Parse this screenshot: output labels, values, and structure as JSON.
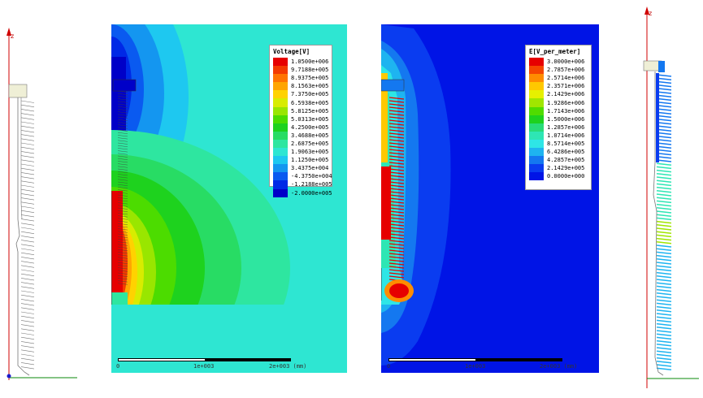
{
  "voltage_legend": {
    "title": "Voltage[V]",
    "entries": [
      {
        "label": "1.0500e+006",
        "color": "#e60000"
      },
      {
        "label": "9.7188e+005",
        "color": "#f33a00"
      },
      {
        "label": "8.9375e+005",
        "color": "#ff7300"
      },
      {
        "label": "8.1563e+005",
        "color": "#ffa500"
      },
      {
        "label": "7.3750e+005",
        "color": "#ffd200"
      },
      {
        "label": "6.5938e+005",
        "color": "#d8ec00"
      },
      {
        "label": "5.8125e+005",
        "color": "#99e600"
      },
      {
        "label": "5.0313e+005",
        "color": "#4cdc00"
      },
      {
        "label": "4.2500e+005",
        "color": "#1ed21e"
      },
      {
        "label": "3.4688e+005",
        "color": "#28dc64"
      },
      {
        "label": "2.6875e+005",
        "color": "#2ee6a0"
      },
      {
        "label": "1.9063e+005",
        "color": "#2ee6d2"
      },
      {
        "label": "1.1250e+005",
        "color": "#1ec8f0"
      },
      {
        "label": "3.4375e+004",
        "color": "#1496f0"
      },
      {
        "label": "-4.3750e+004",
        "color": "#0a5af0"
      },
      {
        "label": "-1.2188e+005",
        "color": "#0028e6"
      },
      {
        "label": "-2.0000e+005",
        "color": "#0000c8"
      }
    ]
  },
  "field_legend": {
    "title": "E[V_per_meter]",
    "entries": [
      {
        "label": "3.0000e+006",
        "color": "#e60000"
      },
      {
        "label": "2.7857e+006",
        "color": "#f54600"
      },
      {
        "label": "2.5714e+006",
        "color": "#ff8c00"
      },
      {
        "label": "2.3571e+006",
        "color": "#ffc800"
      },
      {
        "label": "2.1429e+006",
        "color": "#e6f000"
      },
      {
        "label": "1.9286e+006",
        "color": "#a0e600"
      },
      {
        "label": "1.7143e+006",
        "color": "#50dc00"
      },
      {
        "label": "1.5000e+006",
        "color": "#1ed21e"
      },
      {
        "label": "1.2857e+006",
        "color": "#28dc78"
      },
      {
        "label": "1.0714e+006",
        "color": "#2ee6b4"
      },
      {
        "label": "8.5714e+005",
        "color": "#2ee6e6"
      },
      {
        "label": "6.4286e+005",
        "color": "#1eb4f0"
      },
      {
        "label": "4.2857e+005",
        "color": "#1478f0"
      },
      {
        "label": "2.1429e+005",
        "color": "#0a3cf0"
      },
      {
        "label": "0.0000e+000",
        "color": "#0014e6"
      }
    ]
  },
  "voltage_scale": {
    "labels": [
      "0",
      "1e+003",
      "2e+003 (mm)"
    ]
  },
  "field_scale": {
    "labels": [
      "0",
      "1e+003",
      "2e+003 (mm)"
    ]
  },
  "axis_left": {
    "label": "z"
  },
  "axis_right": {
    "label": "z"
  }
}
